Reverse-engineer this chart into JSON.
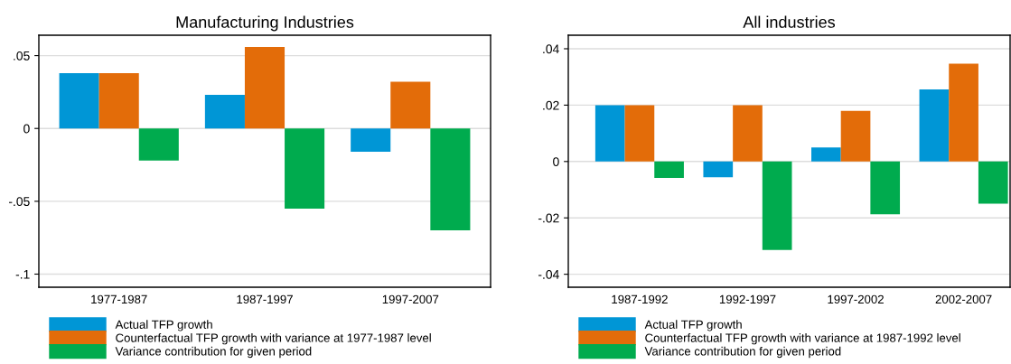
{
  "chart_data": [
    {
      "type": "bar",
      "title": "Manufacturing Industries",
      "categories": [
        "1977-1987",
        "1987-1997",
        "1997-2007"
      ],
      "series": [
        {
          "name": "Actual TFP growth",
          "color": "#0096d6",
          "values": [
            0.038,
            0.023,
            -0.016
          ]
        },
        {
          "name": "Counterfactual TFP growth with variance at 1977-1987 level",
          "color": "#e36c09",
          "values": [
            0.038,
            0.056,
            0.032
          ]
        },
        {
          "name": "Variance contribution for given period",
          "color": "#00ab4e",
          "values": [
            -0.022,
            -0.055,
            -0.07
          ]
        }
      ],
      "ylim": [
        -0.109,
        0.064
      ],
      "yticks": [
        {
          "value": -0.1,
          "label": "-.1"
        },
        {
          "value": -0.05,
          "label": "-.05"
        },
        0,
        {
          "value": 0.05,
          "label": ".05"
        }
      ],
      "grid": "y",
      "legend": "bottom"
    },
    {
      "type": "bar",
      "title": "All industries",
      "categories": [
        "1987-1992",
        "1992-1997",
        "1997-2002",
        "2002-2007"
      ],
      "series": [
        {
          "name": "Actual TFP growth",
          "color": "#0096d6",
          "values": [
            0.02,
            -0.0056,
            0.005,
            0.0256
          ]
        },
        {
          "name": "Counterfactual TFP growth with variance at 1987-1992 level",
          "color": "#e36c09",
          "values": [
            0.02,
            0.02,
            0.018,
            0.0347
          ]
        },
        {
          "name": "Variance contribution for given period",
          "color": "#00ab4e",
          "values": [
            -0.0058,
            -0.0314,
            -0.0187,
            -0.015
          ]
        }
      ],
      "ylim": [
        -0.0446,
        0.0448
      ],
      "yticks": [
        {
          "value": -0.04,
          "label": "-.04"
        },
        {
          "value": -0.02,
          "label": "-.02"
        },
        0,
        {
          "value": 0.02,
          "label": ".02"
        },
        {
          "value": 0.04,
          "label": ".04"
        }
      ],
      "grid": "y",
      "legend": "bottom"
    }
  ]
}
